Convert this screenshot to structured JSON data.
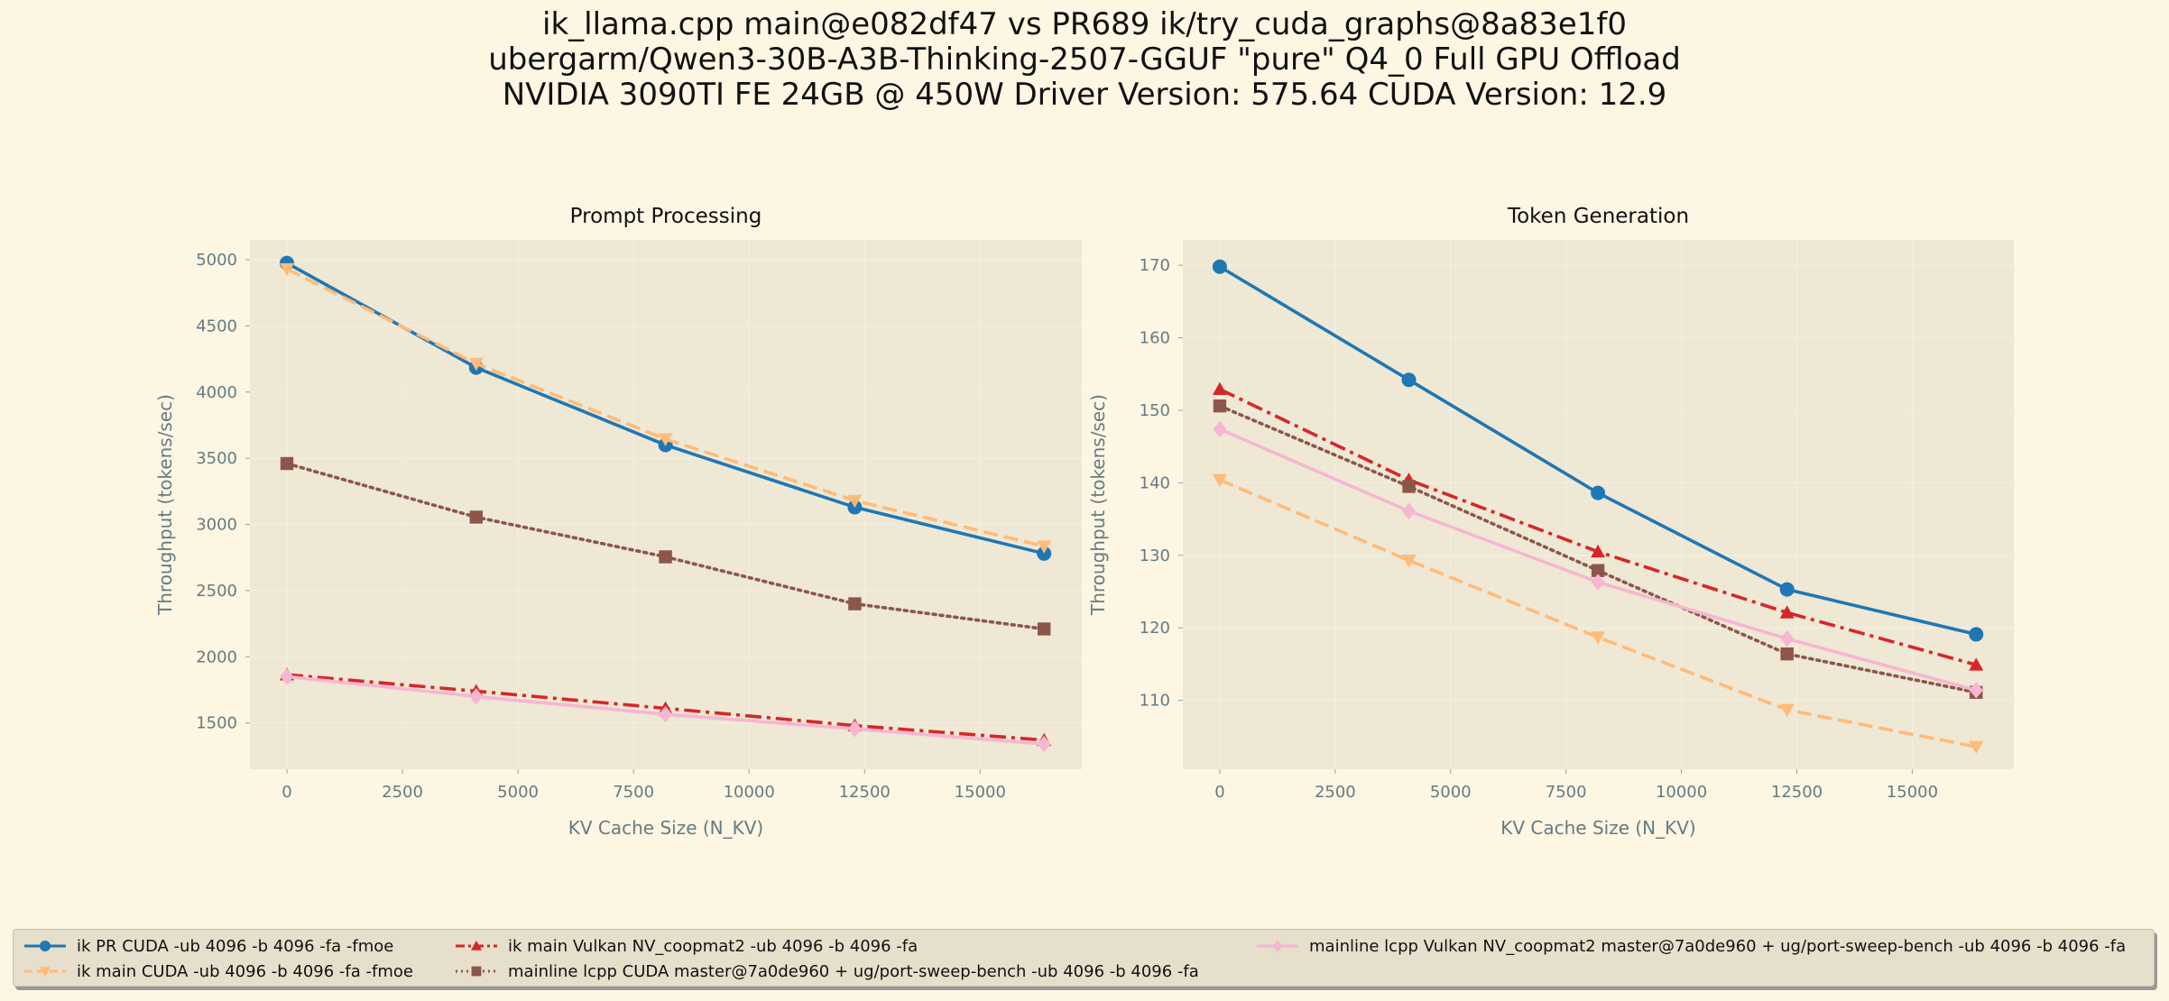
{
  "title": [
    "ik_llama.cpp main@e082df47 vs PR689 ik/try_cuda_graphs@8a83e1f0",
    "ubergarm/Qwen3-30B-A3B-Thinking-2507-GGUF \"pure\" Q4_0 Full GPU Offload",
    "NVIDIA 3090TI FE 24GB @ 450W Driver Version: 575.64 CUDA Version: 12.9"
  ],
  "colors": {
    "background": "#fdf6e3",
    "axes_background": "#eee8d5",
    "tick_text": "#657b83"
  },
  "chart_data": [
    {
      "type": "line",
      "title": "Prompt Processing",
      "xlabel": "KV Cache Size (N_KV)",
      "ylabel": "Throughput (tokens/sec)",
      "xlim": [
        -800,
        17200
      ],
      "ylim": [
        1150,
        5150
      ],
      "xticks": [
        0,
        2500,
        5000,
        7500,
        10000,
        12500,
        15000
      ],
      "yticks": [
        1500,
        2000,
        2500,
        3000,
        3500,
        4000,
        4500,
        5000
      ],
      "x": [
        0,
        4096,
        8192,
        12288,
        16384
      ],
      "series": [
        {
          "name": "ik PR CUDA -ub 4096 -b 4096 -fa -fmoe",
          "values": [
            4975,
            4185,
            3600,
            3130,
            2780
          ]
        },
        {
          "name": "ik main CUDA -ub 4096 -b 4096 -fa -fmoe",
          "values": [
            4930,
            4215,
            3645,
            3180,
            2835
          ]
        },
        {
          "name": "ik main Vulkan NV_coopmat2 -ub 4096 -b 4096 -fa",
          "values": [
            1865,
            1740,
            1610,
            1480,
            1370
          ]
        },
        {
          "name": "mainline lcpp CUDA master@7a0de960 + ug/port-sweep-bench -ub 4096 -b 4096 -fa",
          "values": [
            3460,
            3055,
            2755,
            2400,
            2210
          ]
        },
        {
          "name": "mainline lcpp Vulkan NV_coopmat2 master@7a0de960 + ug/port-sweep-bench -ub 4096 -b 4096 -fa",
          "values": [
            1850,
            1700,
            1565,
            1455,
            1340
          ]
        }
      ]
    },
    {
      "type": "line",
      "title": "Token Generation",
      "xlabel": "KV Cache Size (N_KV)",
      "ylabel": "Throughput (tokens/sec)",
      "xlim": [
        -800,
        17200
      ],
      "ylim": [
        100.5,
        173.5
      ],
      "xticks": [
        0,
        2500,
        5000,
        7500,
        10000,
        12500,
        15000
      ],
      "yticks": [
        110,
        120,
        130,
        140,
        150,
        160,
        170
      ],
      "x": [
        0,
        4096,
        8192,
        12288,
        16384
      ],
      "series": [
        {
          "name": "ik PR CUDA -ub 4096 -b 4096 -fa -fmoe",
          "values": [
            169.8,
            154.2,
            138.6,
            125.3,
            119.1
          ]
        },
        {
          "name": "ik main CUDA -ub 4096 -b 4096 -fa -fmoe",
          "values": [
            140.4,
            129.3,
            118.7,
            108.7,
            103.6
          ]
        },
        {
          "name": "ik main Vulkan NV_coopmat2 -ub 4096 -b 4096 -fa",
          "values": [
            152.9,
            140.4,
            130.5,
            122.1,
            114.9
          ]
        },
        {
          "name": "mainline lcpp CUDA master@7a0de960 + ug/port-sweep-bench -ub 4096 -b 4096 -fa",
          "values": [
            150.6,
            139.5,
            127.9,
            116.4,
            111.1
          ]
        },
        {
          "name": "mainline lcpp Vulkan NV_coopmat2 master@7a0de960 + ug/port-sweep-bench -ub 4096 -b 4096 -fa",
          "values": [
            147.4,
            136.1,
            126.3,
            118.5,
            111.4
          ]
        }
      ]
    }
  ],
  "series_styles": [
    {
      "color": "#1f77b4",
      "dash": "",
      "marker": "circle"
    },
    {
      "color": "#ffbb78",
      "dash": "16 7",
      "marker": "triangle-down"
    },
    {
      "color": "#d62728",
      "dash": "18 6 4 6",
      "marker": "triangle-up"
    },
    {
      "color": "#8c564b",
      "dash": "3 5",
      "marker": "square"
    },
    {
      "color": "#f7b6d2",
      "dash": "",
      "marker": "diamond"
    }
  ],
  "legend": {
    "placement": "bottom",
    "entries": [
      "ik PR CUDA -ub 4096 -b 4096 -fa -fmoe",
      "ik main CUDA -ub 4096 -b 4096 -fa -fmoe",
      "ik main Vulkan NV_coopmat2 -ub 4096 -b 4096 -fa",
      "mainline lcpp CUDA master@7a0de960 + ug/port-sweep-bench -ub 4096 -b 4096 -fa",
      "mainline lcpp Vulkan NV_coopmat2 master@7a0de960 + ug/port-sweep-bench -ub 4096 -b 4096 -fa"
    ]
  }
}
